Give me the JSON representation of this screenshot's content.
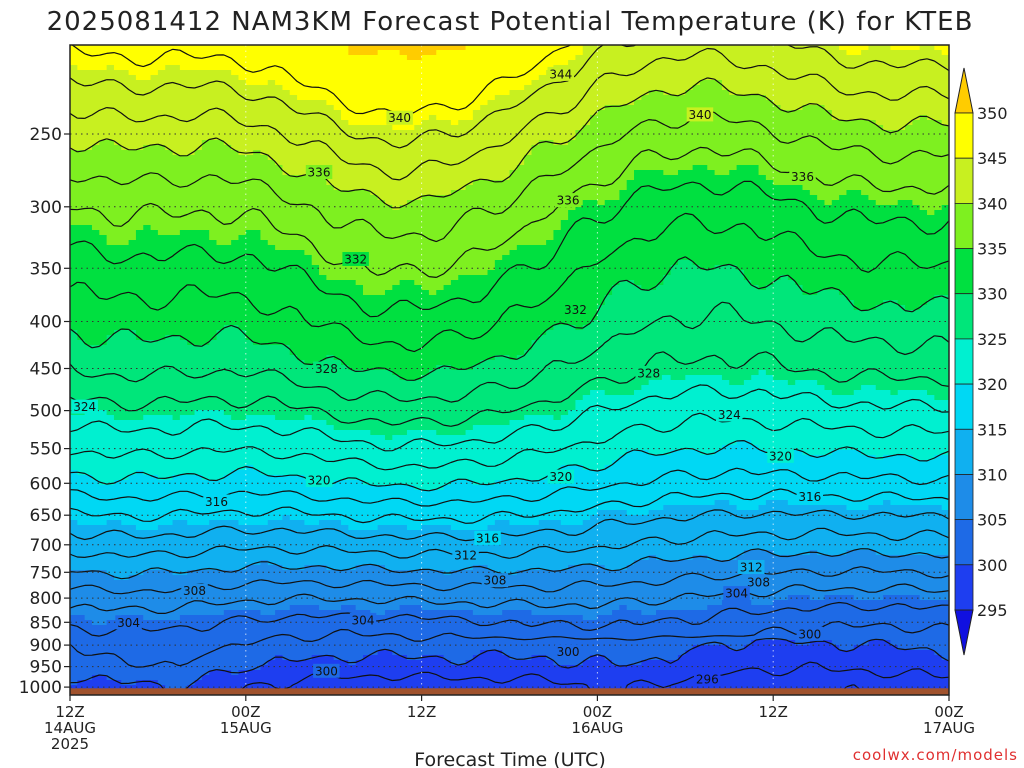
{
  "chart_data": {
    "type": "heatmap",
    "title": "2025081412 NAM3KM Forecast Potential Temperature (K) for KTEB",
    "xlabel": "Forecast Time (UTC)",
    "ylabel": "",
    "y_ticks": [
      250,
      300,
      350,
      400,
      450,
      500,
      550,
      600,
      650,
      700,
      750,
      800,
      850,
      900,
      950,
      1000
    ],
    "y_tick_labels": [
      "250",
      "300",
      "350",
      "400",
      "450",
      "500",
      "550",
      "600",
      "650",
      "700",
      "750",
      "800",
      "850",
      "900",
      "950",
      "1000"
    ],
    "y_scale": "log",
    "ylim": [
      1020,
      200
    ],
    "x_hours": [
      0,
      12,
      24,
      36,
      48,
      60
    ],
    "x_tick_labels": [
      {
        "line1": "12Z",
        "line2": "14AUG",
        "line3": "2025"
      },
      {
        "line1": "00Z",
        "line2": "15AUG",
        "line3": ""
      },
      {
        "line1": "12Z",
        "line2": "",
        "line3": ""
      },
      {
        "line1": "00Z",
        "line2": "16AUG",
        "line3": ""
      },
      {
        "line1": "12Z",
        "line2": "",
        "line3": ""
      },
      {
        "line1": "00Z",
        "line2": "17AUG",
        "line3": ""
      }
    ],
    "colorbar": {
      "levels": [
        295,
        300,
        305,
        310,
        315,
        320,
        325,
        330,
        335,
        340,
        345,
        350
      ],
      "labels": [
        "295",
        "300",
        "305",
        "310",
        "315",
        "320",
        "325",
        "330",
        "335",
        "340",
        "345",
        "350"
      ],
      "colors": [
        "#1010e0",
        "#1e3ef0",
        "#1e6ae6",
        "#1e8ce8",
        "#10b0f0",
        "#00d8f4",
        "#00f0d0",
        "#00e67a",
        "#00e040",
        "#7ef020",
        "#c8f020",
        "#ffff00",
        "#ffcc00"
      ]
    },
    "profile": {
      "pressure": [
        1000,
        950,
        900,
        850,
        800,
        750,
        700,
        650,
        600,
        550,
        500,
        450,
        400,
        350,
        300,
        250,
        200
      ],
      "theta": [
        298,
        300,
        301.5,
        303.5,
        306,
        309,
        312,
        315,
        318.5,
        321.5,
        324.5,
        327.5,
        330,
        332.5,
        335.5,
        340,
        346
      ]
    },
    "contour_levels": [
      296,
      298,
      300,
      302,
      304,
      306,
      308,
      310,
      312,
      314,
      316,
      318,
      320,
      322,
      324,
      326,
      328,
      330,
      332,
      334,
      336,
      338,
      340,
      342,
      344,
      346
    ],
    "contour_labels": [
      {
        "value": "344",
        "hour": 33.5,
        "p": 215
      },
      {
        "value": "340",
        "hour": 22.5,
        "p": 240
      },
      {
        "value": "340",
        "hour": 43,
        "p": 238
      },
      {
        "value": "336",
        "hour": 17,
        "p": 275
      },
      {
        "value": "336",
        "hour": 50,
        "p": 278
      },
      {
        "value": "336",
        "hour": 34,
        "p": 295
      },
      {
        "value": "332",
        "hour": 19.5,
        "p": 342
      },
      {
        "value": "332",
        "hour": 34.5,
        "p": 388
      },
      {
        "value": "328",
        "hour": 17.5,
        "p": 450
      },
      {
        "value": "328",
        "hour": 39.5,
        "p": 455
      },
      {
        "value": "324",
        "hour": 1,
        "p": 495
      },
      {
        "value": "324",
        "hour": 45,
        "p": 505
      },
      {
        "value": "320",
        "hour": 17,
        "p": 595
      },
      {
        "value": "320",
        "hour": 33.5,
        "p": 590
      },
      {
        "value": "320",
        "hour": 48.5,
        "p": 560
      },
      {
        "value": "316",
        "hour": 10,
        "p": 628
      },
      {
        "value": "316",
        "hour": 28.5,
        "p": 688
      },
      {
        "value": "316",
        "hour": 50.5,
        "p": 620
      },
      {
        "value": "312",
        "hour": 27,
        "p": 718
      },
      {
        "value": "312",
        "hour": 46.5,
        "p": 740
      },
      {
        "value": "308",
        "hour": 8.5,
        "p": 785
      },
      {
        "value": "308",
        "hour": 29,
        "p": 765
      },
      {
        "value": "308",
        "hour": 47,
        "p": 768
      },
      {
        "value": "304",
        "hour": 4,
        "p": 850
      },
      {
        "value": "304",
        "hour": 20,
        "p": 845
      },
      {
        "value": "304",
        "hour": 45.5,
        "p": 790
      },
      {
        "value": "300",
        "hour": 17.5,
        "p": 960
      },
      {
        "value": "300",
        "hour": 34,
        "p": 915
      },
      {
        "value": "300",
        "hour": 50.5,
        "p": 875
      },
      {
        "value": "296",
        "hour": 43.5,
        "p": 980
      }
    ],
    "ground_color": "#a0522d",
    "grid": true,
    "legend_position": "right"
  },
  "credit": "coolwx.com/models"
}
